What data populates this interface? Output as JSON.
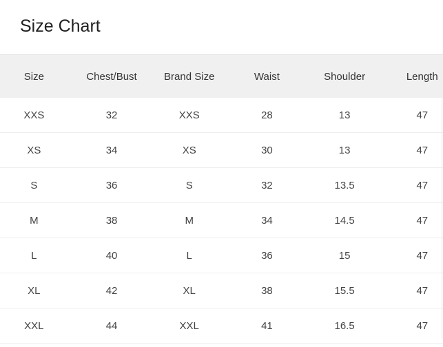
{
  "title": "Size Chart",
  "columns": [
    "Size",
    "Chest/Bust",
    "Brand Size",
    "Waist",
    "Shoulder",
    "Length"
  ],
  "rows": [
    [
      "XXS",
      "32",
      "XXS",
      "28",
      "13",
      "47"
    ],
    [
      "XS",
      "34",
      "XS",
      "30",
      "13",
      "47"
    ],
    [
      "S",
      "36",
      "S",
      "32",
      "13.5",
      "47"
    ],
    [
      "M",
      "38",
      "M",
      "34",
      "14.5",
      "47"
    ],
    [
      "L",
      "40",
      "L",
      "36",
      "15",
      "47"
    ],
    [
      "XL",
      "42",
      "XL",
      "38",
      "15.5",
      "47"
    ],
    [
      "XXL",
      "44",
      "XXL",
      "41",
      "16.5",
      "47"
    ]
  ]
}
